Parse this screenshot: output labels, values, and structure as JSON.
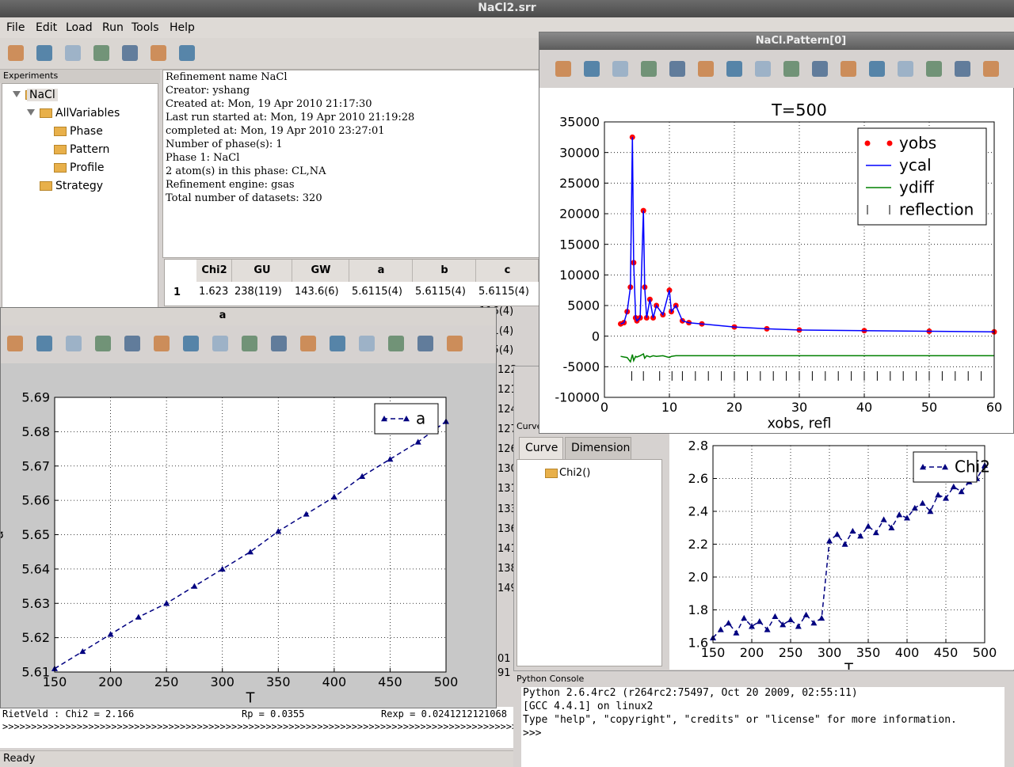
{
  "window": {
    "title": "NaCl2.srr",
    "menu": [
      "File",
      "Edit",
      "Load",
      "Run",
      "Tools",
      "Help"
    ],
    "status": "Ready"
  },
  "experiments": {
    "title": "Experiments",
    "tree": [
      "NaCl",
      "AllVariables",
      "Phase",
      "Pattern",
      "Profile",
      "Strategy"
    ]
  },
  "info": [
    "Refinement name NaCl",
    "Creator: yshang",
    "Created at: Mon, 19 Apr 2010 21:17:30",
    "Last run started at: Mon, 19 Apr 2010 21:19:28",
    "completed at: Mon, 19 Apr 2010 23:27:01",
    "Number of phase(s): 1",
    "Phase 1: NaCl",
    "2 atom(s) in this phase: CL,NA",
    "Refinement engine: gsas",
    "Total number of datasets: 320"
  ],
  "table": {
    "headers": [
      "Chi2",
      "GU",
      "GW",
      "a",
      "b",
      "c"
    ],
    "rows": [
      [
        "1",
        "1.623",
        "238(119)",
        "143.6(6)",
        "5.6115(4)",
        "5.6115(4)",
        "5.6115(4)"
      ]
    ],
    "fragments": [
      "116(4)",
      "121(4)",
      "125(4)",
      "122",
      "121",
      "124",
      "127",
      "126",
      "130",
      "131",
      "133",
      "136",
      "141",
      "138",
      "149",
      "01",
      "91"
    ]
  },
  "windows": {
    "a": "a",
    "pattern": "NaCl.Pattern[0]",
    "curve": "Curve"
  },
  "curve_panel": {
    "tabs": [
      "Curve",
      "Dimension"
    ],
    "item": "Chi2()"
  },
  "log": [
    "RietVeld  :  Chi2 = 2.166",
    "Rp = 0.0355",
    "Rexp = 0.0241212121068",
    ">>>>>>>>>>>>>>>>>>>>>>>>>>>>>>>>>>>>>>>>>>>>>>>>>>>>>>>>>>>>>>>>>>>>>>>>>>>>>>>>>>>>>>>>>>>>>>>>"
  ],
  "console": {
    "title": "Python Console",
    "lines": [
      "Python 2.6.4rc2 (r264rc2:75497, Oct 20 2009, 02:55:11)",
      "[GCC 4.4.1] on linux2",
      "Type \"help\", \"copyright\", \"credits\" or \"license\" for more information.",
      ">>>"
    ]
  },
  "chart_data": [
    {
      "type": "line",
      "title": "T=500",
      "xlabel": "xobs, refl",
      "x": [
        2.5,
        3,
        3.5,
        4,
        4.3,
        4.5,
        4.8,
        5,
        5.5,
        6,
        6.2,
        6.5,
        7,
        7.5,
        8,
        9,
        10,
        10.3,
        11,
        12,
        13,
        15,
        20,
        25,
        30,
        40,
        50,
        60
      ],
      "xlim": [
        0,
        60
      ],
      "xticks": [
        0,
        10,
        20,
        30,
        40,
        50,
        60
      ],
      "ylim": [
        -10000,
        35000
      ],
      "yticks": [
        -10000,
        -5000,
        0,
        5000,
        10000,
        15000,
        20000,
        25000,
        30000,
        35000
      ],
      "grid": true,
      "legend": "upper right",
      "series": [
        {
          "name": "yobs",
          "color": "#ff0000",
          "marker": "circle",
          "line": null,
          "values": [
            2000,
            2200,
            4000,
            8000,
            32500,
            12000,
            3000,
            2500,
            3000,
            20500,
            8000,
            3000,
            6000,
            3000,
            5000,
            3500,
            7500,
            4000,
            5000,
            2500,
            2200,
            2000,
            1500,
            1200,
            1000,
            900,
            800,
            700
          ]
        },
        {
          "name": "ycal",
          "color": "#0000ff",
          "marker": null,
          "line": "solid",
          "values": [
            2000,
            2200,
            4000,
            8000,
            32500,
            12000,
            3000,
            2500,
            3000,
            20500,
            8000,
            3000,
            6000,
            3000,
            5000,
            3500,
            7500,
            4000,
            5000,
            2500,
            2200,
            2000,
            1500,
            1200,
            1000,
            900,
            800,
            700
          ]
        },
        {
          "name": "ydiff",
          "color": "#008000",
          "marker": null,
          "line": "solid",
          "values": [
            -3300,
            -3400,
            -3500,
            -4200,
            -3000,
            -4000,
            -3300,
            -3400,
            -3200,
            -2900,
            -3600,
            -3200,
            -3400,
            -3200,
            -3300,
            -3200,
            -3500,
            -3300,
            -3200,
            -3200,
            -3200,
            -3200,
            -3200,
            -3200,
            -3200,
            -3200,
            -3200,
            -3200
          ]
        },
        {
          "name": "reflection",
          "color": "#000000",
          "marker": "vline",
          "line": null,
          "x": [
            4.2,
            6,
            8.5,
            10.4,
            12,
            14,
            16,
            18,
            20,
            22,
            24,
            26,
            28,
            30,
            32,
            34,
            36,
            38,
            40,
            42,
            44,
            46,
            48,
            50,
            52,
            54,
            56,
            58,
            60
          ],
          "values": [
            -6500,
            -6500,
            -6500,
            -6500,
            -6500,
            -6500,
            -6500,
            -6500,
            -6500,
            -6500,
            -6500,
            -6500,
            -6500,
            -6500,
            -6500,
            -6500,
            -6500,
            -6500,
            -6500,
            -6500,
            -6500,
            -6500,
            -6500,
            -6500,
            -6500,
            -6500,
            -6500,
            -6500,
            -6500
          ]
        }
      ]
    },
    {
      "type": "line",
      "xlabel": "T",
      "ylabel": "a",
      "x": [
        150,
        175,
        200,
        225,
        250,
        275,
        300,
        325,
        350,
        375,
        400,
        425,
        450,
        475,
        500
      ],
      "xlim": [
        150,
        500
      ],
      "xticks": [
        150,
        200,
        250,
        300,
        350,
        400,
        450,
        500
      ],
      "ylim": [
        5.61,
        5.69
      ],
      "yticks": [
        5.61,
        5.62,
        5.63,
        5.64,
        5.65,
        5.66,
        5.67,
        5.68,
        5.69
      ],
      "grid": true,
      "legend": "upper right",
      "series": [
        {
          "name": "a",
          "color": "#000080",
          "marker": "triangle",
          "line": "dashed",
          "values": [
            5.611,
            5.616,
            5.621,
            5.626,
            5.63,
            5.635,
            5.64,
            5.645,
            5.651,
            5.656,
            5.661,
            5.667,
            5.672,
            5.677,
            5.683
          ]
        }
      ]
    },
    {
      "type": "line",
      "xlabel": "T",
      "ylabel": "Chi2",
      "x": [
        150,
        160,
        170,
        180,
        190,
        200,
        210,
        220,
        230,
        240,
        250,
        260,
        270,
        280,
        290,
        300,
        310,
        320,
        330,
        340,
        350,
        360,
        370,
        380,
        390,
        400,
        410,
        420,
        430,
        440,
        450,
        460,
        470,
        480,
        490,
        500
      ],
      "xlim": [
        150,
        500
      ],
      "xticks": [
        150,
        200,
        250,
        300,
        350,
        400,
        450,
        500
      ],
      "ylim": [
        1.6,
        2.8
      ],
      "yticks": [
        1.6,
        1.8,
        {
          "value": 2,
          "label": "2.0"
        },
        2.2,
        2.4,
        2.6,
        2.8
      ],
      "grid": true,
      "legend": "upper right",
      "series": [
        {
          "name": "Chi2",
          "color": "#000080",
          "marker": "triangle",
          "line": "dashed",
          "values": [
            1.63,
            1.68,
            1.72,
            1.66,
            1.75,
            1.7,
            1.73,
            1.68,
            1.76,
            1.71,
            1.74,
            1.7,
            1.77,
            1.72,
            1.75,
            2.22,
            2.26,
            2.2,
            2.28,
            2.25,
            2.31,
            2.27,
            2.35,
            2.3,
            2.38,
            2.36,
            2.42,
            2.45,
            2.4,
            2.5,
            2.48,
            2.55,
            2.52,
            2.58,
            2.6,
            2.68
          ]
        }
      ]
    }
  ]
}
